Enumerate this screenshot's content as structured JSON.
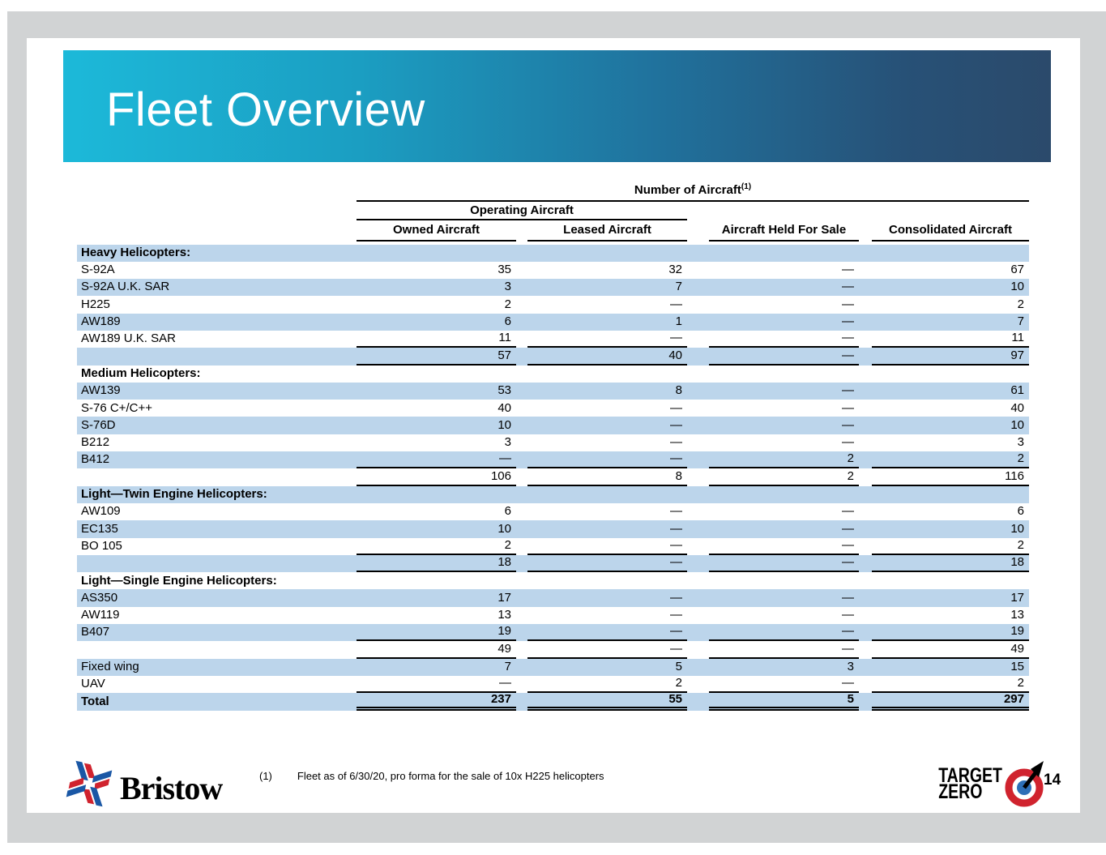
{
  "page": {
    "title": "Fleet Overview",
    "page_number": "14",
    "footnote": {
      "marker": "(1)",
      "text": "Fleet as of 6/30/20, pro forma for the sale of 10x H225 helicopters"
    },
    "branding": {
      "bristow_wordmark": "Bristow",
      "target_zero_line1": "TARGET",
      "target_zero_line2": "ZERO"
    }
  },
  "colors": {
    "row_highlight": "#BCD5EB",
    "banner_gradient_start": "#1CB9D9",
    "banner_gradient_end": "#2B4A6B",
    "bristow_blue": "#1A57A5",
    "bristow_red": "#D0232E"
  },
  "table": {
    "super_header": "Number of Aircraft",
    "super_note": "(1)",
    "group_header": "Operating Aircraft",
    "columns": [
      "Owned Aircraft",
      "Leased Aircraft",
      "Aircraft Held For Sale",
      "Consolidated Aircraft"
    ],
    "rows": [
      {
        "label": "Heavy Helicopters:",
        "section": true,
        "values": [
          "",
          "",
          "",
          ""
        ]
      },
      {
        "label": "S-92A",
        "values": [
          "35",
          "32",
          "—",
          "67"
        ]
      },
      {
        "label": "S-92A U.K. SAR",
        "values": [
          "3",
          "7",
          "—",
          "10"
        ]
      },
      {
        "label": "H225",
        "values": [
          "2",
          "—",
          "—",
          "2"
        ]
      },
      {
        "label": "AW189",
        "values": [
          "6",
          "1",
          "—",
          "7"
        ]
      },
      {
        "label": "AW189 U.K. SAR",
        "values": [
          "11",
          "—",
          "—",
          "11"
        ],
        "rule": true
      },
      {
        "label": "",
        "values": [
          "57",
          "40",
          "—",
          "97"
        ],
        "rule": true
      },
      {
        "label": "Medium Helicopters:",
        "section": true,
        "values": [
          "",
          "",
          "",
          ""
        ]
      },
      {
        "label": "AW139",
        "values": [
          "53",
          "8",
          "—",
          "61"
        ]
      },
      {
        "label": "S-76 C+/C++",
        "values": [
          "40",
          "—",
          "—",
          "40"
        ]
      },
      {
        "label": "S-76D",
        "values": [
          "10",
          "—",
          "—",
          "10"
        ]
      },
      {
        "label": "B212",
        "values": [
          "3",
          "—",
          "—",
          "3"
        ]
      },
      {
        "label": "B412",
        "values": [
          "—",
          "—",
          "2",
          "2"
        ],
        "rule": true
      },
      {
        "label": "",
        "values": [
          "106",
          "8",
          "2",
          "116"
        ],
        "rule": true
      },
      {
        "label": "Light—Twin Engine Helicopters:",
        "section": true,
        "values": [
          "",
          "",
          "",
          ""
        ]
      },
      {
        "label": "AW109",
        "values": [
          "6",
          "—",
          "—",
          "6"
        ]
      },
      {
        "label": "EC135",
        "values": [
          "10",
          "—",
          "—",
          "10"
        ]
      },
      {
        "label": "BO 105",
        "values": [
          "2",
          "—",
          "—",
          "2"
        ],
        "rule": true
      },
      {
        "label": "",
        "values": [
          "18",
          "—",
          "—",
          "18"
        ],
        "rule": true
      },
      {
        "label": "Light—Single Engine Helicopters:",
        "section": true,
        "values": [
          "",
          "",
          "",
          ""
        ]
      },
      {
        "label": "AS350",
        "values": [
          "17",
          "—",
          "—",
          "17"
        ]
      },
      {
        "label": "AW119",
        "values": [
          "13",
          "—",
          "—",
          "13"
        ]
      },
      {
        "label": "B407",
        "values": [
          "19",
          "—",
          "—",
          "19"
        ],
        "rule": true
      },
      {
        "label": "",
        "values": [
          "49",
          "—",
          "—",
          "49"
        ],
        "rule": true
      },
      {
        "label": "Fixed wing",
        "values": [
          "7",
          "5",
          "3",
          "15"
        ]
      },
      {
        "label": "UAV",
        "values": [
          "—",
          "2",
          "—",
          "2"
        ],
        "rule": true
      },
      {
        "label": "Total",
        "values": [
          "237",
          "55",
          "5",
          "297"
        ],
        "total": true
      }
    ]
  }
}
